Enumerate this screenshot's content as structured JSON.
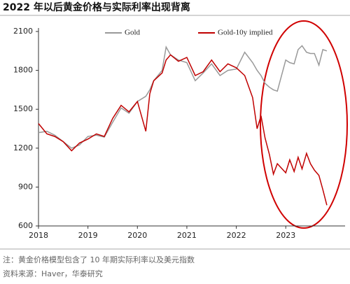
{
  "chart_data": {
    "type": "line",
    "title": "2022 年以后黄金价格与实际利率出现背离",
    "notes": [
      "注：黄金价格模型包含了 10 年期实际利率以及美元指数",
      "资料来源：Haver，华泰研究"
    ],
    "x": [
      2018,
      2018.17,
      2018.33,
      2018.5,
      2018.67,
      2018.83,
      2019,
      2019.17,
      2019.33,
      2019.5,
      2019.67,
      2019.83,
      2020,
      2020.17,
      2020.25,
      2020.33,
      2020.5,
      2020.58,
      2020.67,
      2020.83,
      2021,
      2021.17,
      2021.33,
      2021.5,
      2021.67,
      2021.83,
      2022,
      2022.17,
      2022.33,
      2022.42,
      2022.5,
      2022.58,
      2022.67,
      2022.75,
      2022.83,
      2023,
      2023.08,
      2023.17,
      2023.25,
      2023.33,
      2023.42,
      2023.5,
      2023.58,
      2023.67,
      2023.75,
      2023.83
    ],
    "series": [
      {
        "name": "Gold",
        "color": "#999999",
        "values": [
          1320,
          1330,
          1300,
          1250,
          1200,
          1225,
          1290,
          1300,
          1285,
          1400,
          1510,
          1470,
          1560,
          1600,
          1650,
          1720,
          1800,
          1980,
          1920,
          1880,
          1860,
          1720,
          1780,
          1850,
          1760,
          1800,
          1810,
          1940,
          1860,
          1800,
          1760,
          1700,
          1670,
          1650,
          1640,
          1880,
          1860,
          1850,
          1960,
          1990,
          1940,
          1930,
          1930,
          1840,
          1960,
          1950
        ]
      },
      {
        "name": "Gold-10y implied",
        "color": "#c00000",
        "values": [
          1390,
          1310,
          1290,
          1250,
          1180,
          1240,
          1270,
          1310,
          1290,
          1430,
          1530,
          1480,
          1560,
          1330,
          1620,
          1720,
          1780,
          1880,
          1920,
          1870,
          1900,
          1760,
          1790,
          1880,
          1790,
          1850,
          1820,
          1760,
          1590,
          1350,
          1450,
          1280,
          1150,
          1000,
          1080,
          1010,
          1110,
          1020,
          1130,
          1040,
          1160,
          1080,
          1030,
          990,
          880,
          760
        ]
      }
    ],
    "xlim": [
      2018,
      2024.2
    ],
    "xticks": [
      2018,
      2019,
      2020,
      2021,
      2022,
      2023
    ],
    "ylim": [
      600,
      2100
    ],
    "yticks": [
      600,
      900,
      1200,
      1500,
      1800,
      2100
    ]
  }
}
